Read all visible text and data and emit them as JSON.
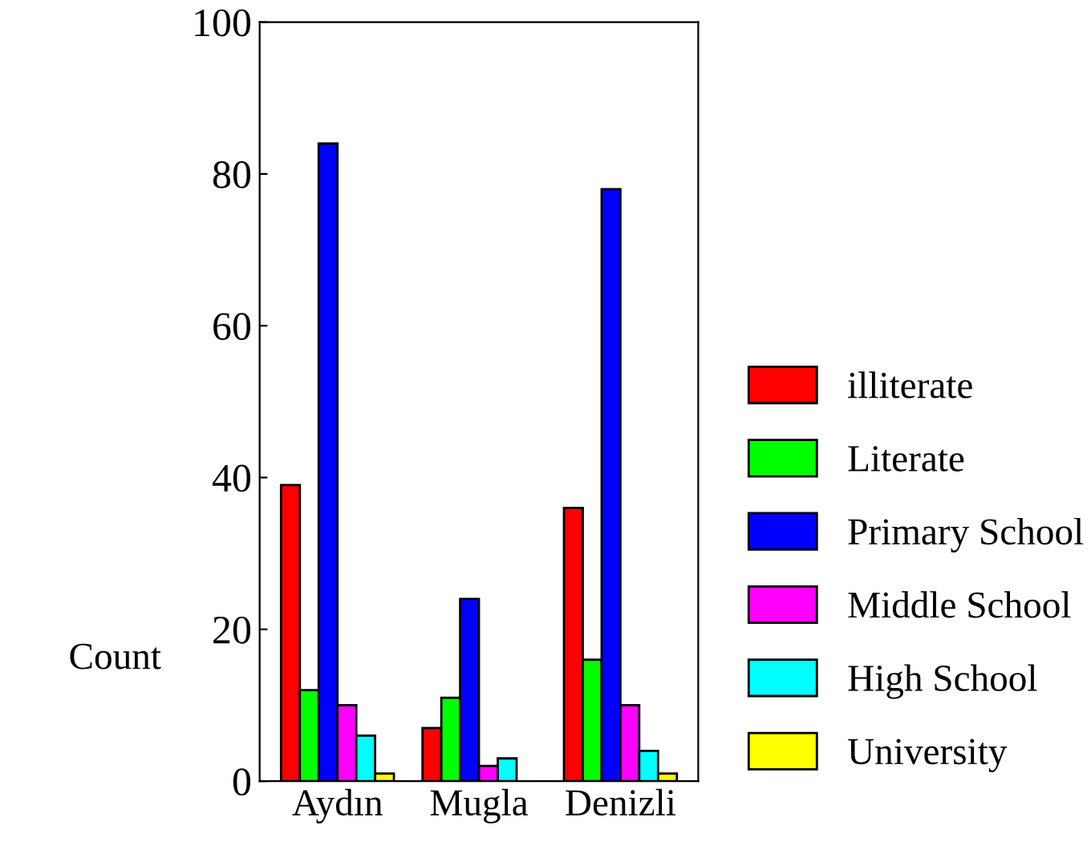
{
  "chart_data": {
    "type": "bar",
    "ylabel": "Count",
    "categories": [
      "Aydın",
      "Mugla",
      "Denizli"
    ],
    "series": [
      {
        "name": "illiterate",
        "color": "#ff0000",
        "values": [
          39,
          7,
          36
        ]
      },
      {
        "name": "Literate",
        "color": "#00ff00",
        "values": [
          12,
          11,
          16
        ]
      },
      {
        "name": "Primary School",
        "color": "#0000ff",
        "values": [
          84,
          24,
          78
        ]
      },
      {
        "name": "Middle School",
        "color": "#ff00ff",
        "values": [
          10,
          2,
          10
        ]
      },
      {
        "name": "High School",
        "color": "#00ffff",
        "values": [
          6,
          3,
          4
        ]
      },
      {
        "name": "University",
        "color": "#ffff00",
        "values": [
          1,
          null,
          1
        ]
      }
    ],
    "ylim": [
      0,
      100
    ],
    "yticks": [
      0,
      20,
      40,
      60,
      80,
      100
    ],
    "grid": false,
    "legend": "right"
  }
}
